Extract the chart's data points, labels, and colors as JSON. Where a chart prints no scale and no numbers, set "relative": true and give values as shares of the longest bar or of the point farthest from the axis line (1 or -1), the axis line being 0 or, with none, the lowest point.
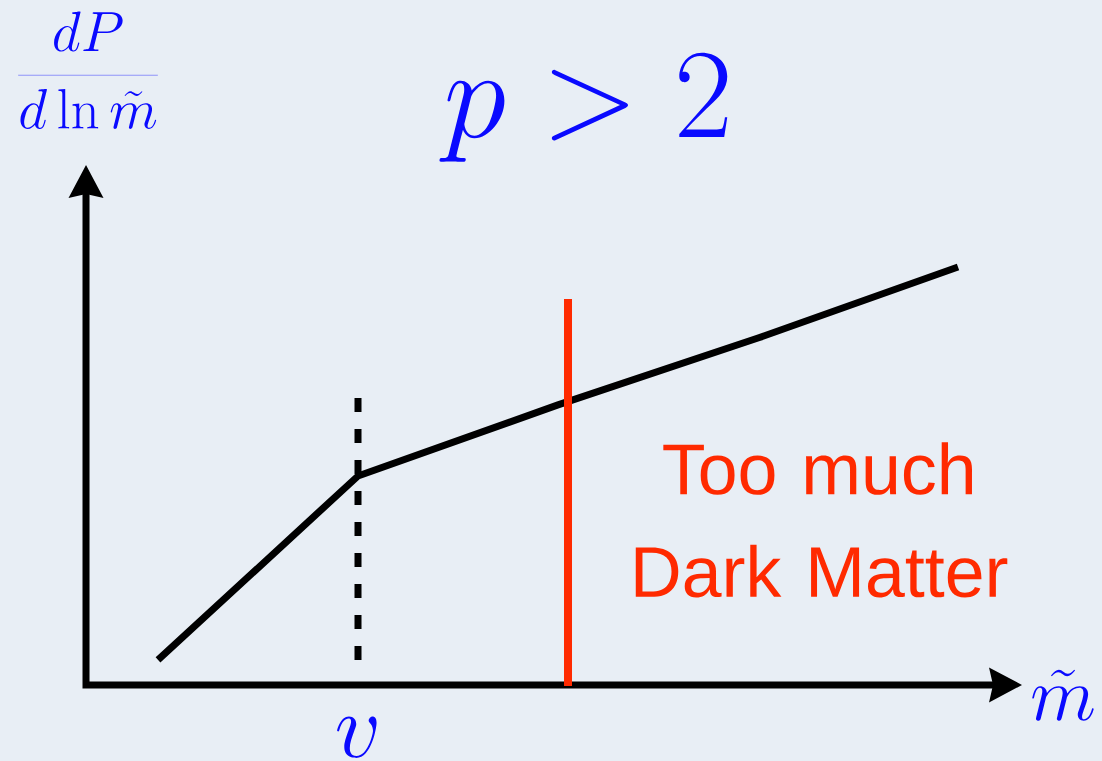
{
  "chart_data": {
    "type": "line",
    "title": "p > 2",
    "xlabel": "\\tilde{m}",
    "relative": true,
    "categories": [
      null,
      null,
      null,
      null,
      null
    ],
    "series": [
      {
        "color": "#000000",
        "values": [
          0.06,
          0.5,
          0.67,
          0.83,
          1
        ]
      }
    ],
    "annotations": [
      "\\frac{dP}{d\\ln\\tilde{m}}",
      "v",
      "Too much Dark Matter"
    ]
  }
}
